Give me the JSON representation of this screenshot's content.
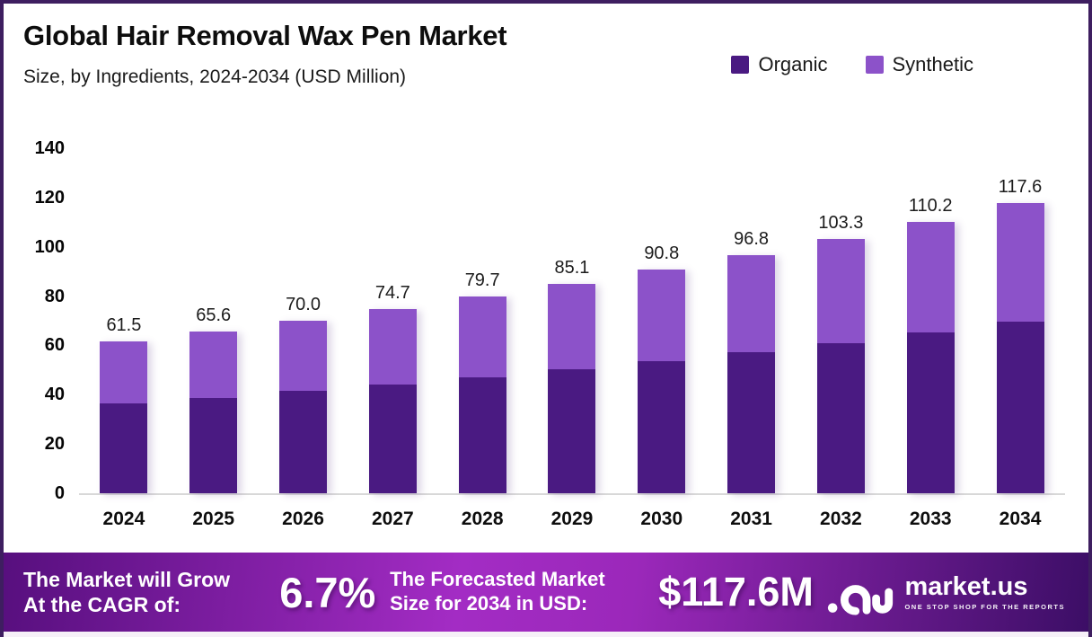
{
  "page": {
    "border_color": "#3e1e60",
    "background": "#ffffff",
    "bottom_strip_color": "#f6f0f8"
  },
  "header": {
    "title": "Global Hair Removal Wax Pen Market",
    "subtitle": "Size, by Ingredients, 2024-2034 (USD Million)"
  },
  "legend": [
    {
      "label": "Organic",
      "color": "#4a1a82"
    },
    {
      "label": "Synthetic",
      "color": "#8c52c9"
    }
  ],
  "chart_data": {
    "type": "bar",
    "stacked": true,
    "title": "Global Hair Removal Wax Pen Market Size, by Ingredients, 2024-2034 (USD Million)",
    "categories": [
      "2024",
      "2025",
      "2026",
      "2027",
      "2028",
      "2029",
      "2030",
      "2031",
      "2032",
      "2033",
      "2034"
    ],
    "series": [
      {
        "name": "Organic",
        "color": "#4a1a82",
        "values": [
          36.4,
          38.8,
          41.4,
          44.1,
          47.1,
          50.2,
          53.6,
          57.2,
          61.0,
          65.1,
          69.5
        ]
      },
      {
        "name": "Synthetic",
        "color": "#8c52c9",
        "values": [
          25.1,
          26.8,
          28.6,
          30.6,
          32.6,
          34.9,
          37.2,
          39.6,
          42.3,
          45.1,
          48.1
        ]
      }
    ],
    "totals": [
      61.5,
      65.6,
      70.0,
      74.7,
      79.7,
      85.1,
      90.8,
      96.8,
      103.3,
      110.2,
      117.6
    ],
    "total_labels": [
      "61.5",
      "65.6",
      "70.0",
      "74.7",
      "79.7",
      "85.1",
      "90.8",
      "96.8",
      "103.3",
      "110.2",
      "117.6"
    ],
    "xlabel": "",
    "ylabel": "",
    "ylim": [
      0,
      140
    ],
    "yticks": [
      0,
      20,
      40,
      60,
      80,
      100,
      120,
      140
    ],
    "grid": false,
    "legend_position": "top-right"
  },
  "banner": {
    "cagr_label_line1": "The Market will Grow",
    "cagr_label_line2": "At the CAGR of:",
    "cagr_value": "6.7%",
    "forecast_label_line1": "The Forecasted Market",
    "forecast_label_line2": "Size for 2034 in USD:",
    "forecast_value": "$117.6M",
    "gradient_stops": [
      "#570f7e",
      "#a32cc4",
      "#9b28ba",
      "#3c0e66"
    ]
  },
  "logo": {
    "name": "market.us",
    "tagline": "ONE STOP SHOP FOR THE REPORTS"
  }
}
